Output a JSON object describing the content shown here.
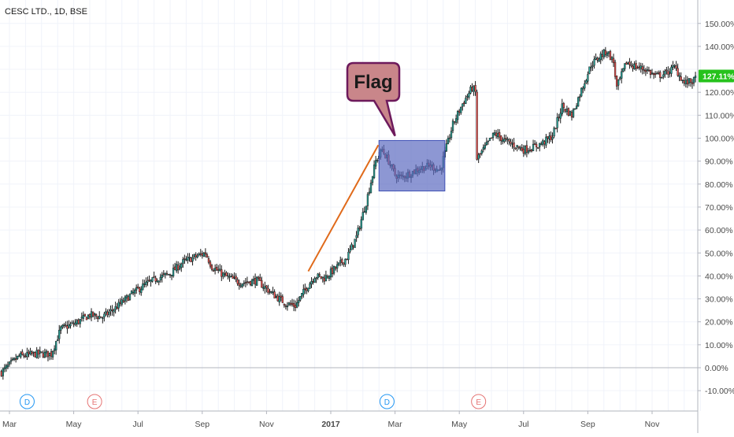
{
  "chart_data": {
    "type": "candlestick",
    "title": "CESC LTD., 1D, BSE",
    "y_unit": "%",
    "ylim": [
      -14,
      160
    ],
    "y_ticks": [
      {
        "value": 150,
        "label": "150.00%"
      },
      {
        "value": 140,
        "label": "140.00%"
      },
      {
        "value": 120,
        "label": "120.00%"
      },
      {
        "value": 110,
        "label": "110.00%"
      },
      {
        "value": 100,
        "label": "100.00%"
      },
      {
        "value": 90,
        "label": "90.00%"
      },
      {
        "value": 80,
        "label": "80.00%"
      },
      {
        "value": 70,
        "label": "70.00%"
      },
      {
        "value": 60,
        "label": "60.00%"
      },
      {
        "value": 50,
        "label": "50.00%"
      },
      {
        "value": 40,
        "label": "40.00%"
      },
      {
        "value": 30,
        "label": "30.00%"
      },
      {
        "value": 20,
        "label": "20.00%"
      },
      {
        "value": 10,
        "label": "10.00%"
      },
      {
        "value": 0,
        "label": "0.00%"
      },
      {
        "value": -10,
        "label": "-10.00%"
      }
    ],
    "x_ticks": [
      {
        "value": 0,
        "label": "Mar",
        "bold": false
      },
      {
        "value": 2,
        "label": "May",
        "bold": false
      },
      {
        "value": 4,
        "label": "Jul",
        "bold": false
      },
      {
        "value": 6,
        "label": "Sep",
        "bold": false
      },
      {
        "value": 8,
        "label": "Nov",
        "bold": false
      },
      {
        "value": 10,
        "label": "2017",
        "bold": true
      },
      {
        "value": 12,
        "label": "Mar",
        "bold": false
      },
      {
        "value": 14,
        "label": "May",
        "bold": false
      },
      {
        "value": 16,
        "label": "Jul",
        "bold": false
      },
      {
        "value": 18,
        "label": "Sep",
        "bold": false
      },
      {
        "value": 20,
        "label": "Nov",
        "bold": false
      }
    ],
    "price_path": [
      [
        -0.25,
        -2
      ],
      [
        0.3,
        5
      ],
      [
        0.8,
        6
      ],
      [
        1.3,
        6
      ],
      [
        1.6,
        17
      ],
      [
        2.0,
        19
      ],
      [
        2.5,
        23
      ],
      [
        2.9,
        22
      ],
      [
        3.3,
        26
      ],
      [
        3.8,
        32
      ],
      [
        4.2,
        36
      ],
      [
        4.6,
        39
      ],
      [
        5.0,
        41
      ],
      [
        5.4,
        46
      ],
      [
        5.9,
        49
      ],
      [
        6.1,
        50
      ],
      [
        6.3,
        44
      ],
      [
        6.7,
        40
      ],
      [
        7.2,
        37
      ],
      [
        7.7,
        38
      ],
      [
        8.2,
        32
      ],
      [
        8.6,
        28
      ],
      [
        8.9,
        27
      ],
      [
        9.2,
        34
      ],
      [
        9.5,
        40
      ],
      [
        9.8,
        39
      ],
      [
        10.2,
        44
      ],
      [
        10.5,
        48
      ],
      [
        10.8,
        57
      ],
      [
        11.1,
        72
      ],
      [
        11.4,
        90
      ],
      [
        11.6,
        95
      ],
      [
        11.8,
        90
      ],
      [
        12.0,
        84
      ],
      [
        12.2,
        83
      ],
      [
        12.5,
        85
      ],
      [
        12.8,
        87
      ],
      [
        13.1,
        88
      ],
      [
        13.4,
        86
      ],
      [
        13.6,
        96
      ],
      [
        13.8,
        106
      ],
      [
        14.1,
        115
      ],
      [
        14.4,
        122
      ],
      [
        14.5,
        120
      ],
      [
        14.55,
        91
      ],
      [
        14.8,
        96
      ],
      [
        15.1,
        102
      ],
      [
        15.4,
        99
      ],
      [
        15.7,
        97
      ],
      [
        16.0,
        95
      ],
      [
        16.3,
        96
      ],
      [
        16.6,
        98
      ],
      [
        16.9,
        101
      ],
      [
        17.2,
        114
      ],
      [
        17.5,
        110
      ],
      [
        17.8,
        121
      ],
      [
        18.1,
        132
      ],
      [
        18.4,
        136
      ],
      [
        18.6,
        138
      ],
      [
        18.8,
        133
      ],
      [
        18.9,
        122
      ],
      [
        19.2,
        133
      ],
      [
        19.5,
        131
      ],
      [
        19.8,
        130
      ],
      [
        20.1,
        127
      ],
      [
        20.4,
        128
      ],
      [
        20.7,
        131
      ],
      [
        21.0,
        124
      ],
      [
        21.3,
        125
      ],
      [
        21.4,
        127
      ]
    ],
    "last_value_label": "127.11%",
    "event_markers": [
      {
        "x": 0.55,
        "letter": "D",
        "color": "#2196f3"
      },
      {
        "x": 2.65,
        "letter": "E",
        "color": "#e57373"
      },
      {
        "x": 11.75,
        "letter": "D",
        "color": "#2196f3"
      },
      {
        "x": 14.6,
        "letter": "E",
        "color": "#e57373"
      }
    ],
    "annotations": {
      "flagpole": {
        "from": [
          9.3,
          42
        ],
        "to": [
          11.48,
          97
        ],
        "color": "#e06a1a"
      },
      "flag_box": {
        "x_from": 11.5,
        "x_to": 13.55,
        "y_from": 77,
        "y_to": 99,
        "fill": "#5c6bc0",
        "stroke": "#3f51b5"
      },
      "callout": {
        "text": "Flag",
        "fill": "#c9868a",
        "stroke": "#6d1a5c",
        "pointer_to": [
          12.0,
          101
        ]
      }
    },
    "colors": {
      "up": "#26a69a",
      "down": "#ef5350",
      "candle": "#1a1a1a",
      "last_label_bg": "#26c21c"
    },
    "grid": true,
    "zero_line": 0
  }
}
